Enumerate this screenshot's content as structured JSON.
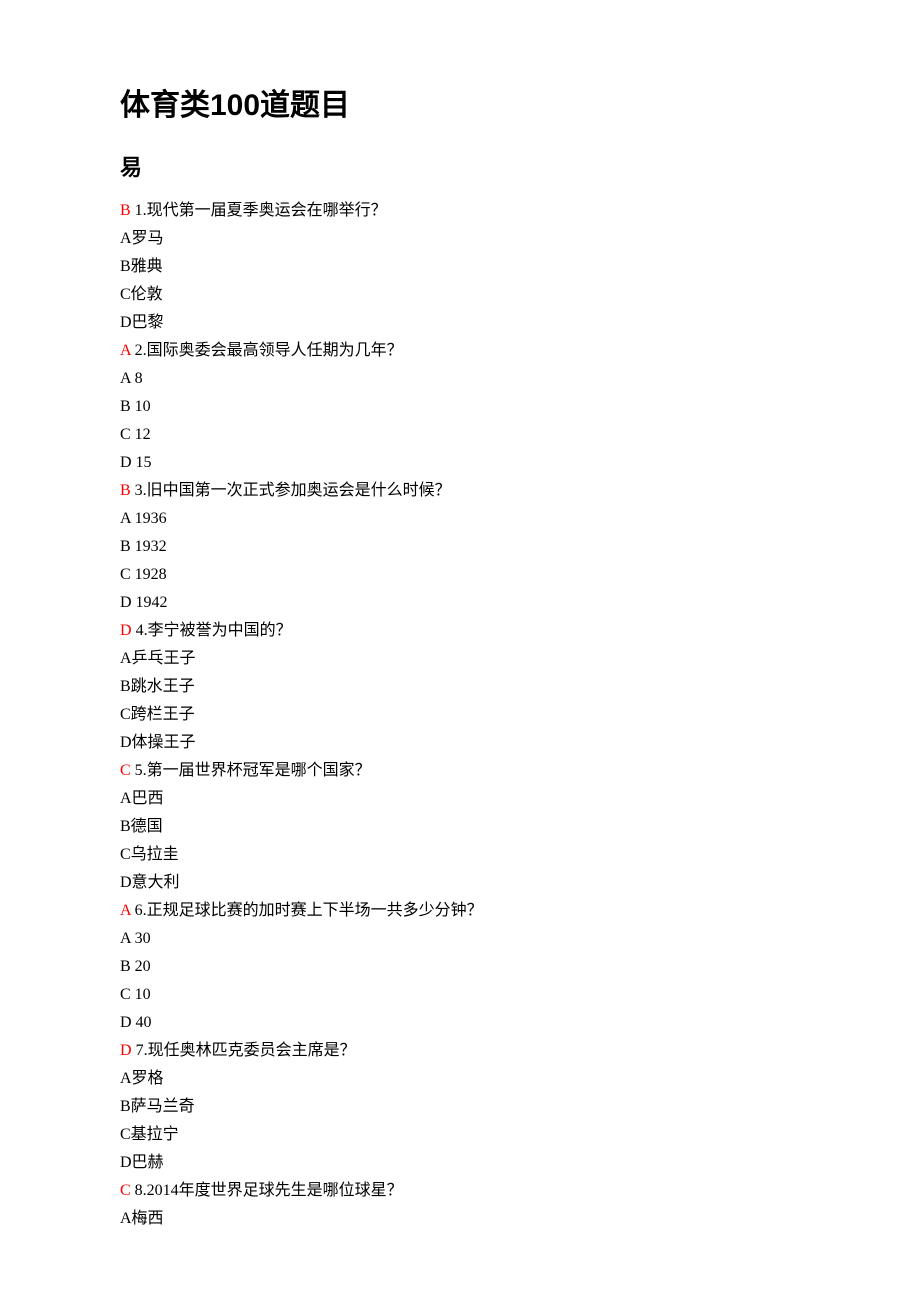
{
  "title": "体育类100道题目",
  "section": "易",
  "text_color": "#000000",
  "answer_color": "#ff0000",
  "background_color": "#ffffff",
  "font_size_body": 16,
  "font_size_title": 30,
  "font_size_section": 22,
  "questions": [
    {
      "answer": "B",
      "number": "1",
      "text": "现代第一届夏季奥运会在哪举行？",
      "options": [
        "A罗马",
        "B雅典",
        "C伦敦",
        "D巴黎"
      ]
    },
    {
      "answer": "A",
      "number": "2",
      "text": "国际奥委会最高领导人任期为几年？",
      "options": [
        "A 8",
        "B 10",
        "C 12",
        "D 15"
      ]
    },
    {
      "answer": "B",
      "number": "3",
      "text": "旧中国第一次正式参加奥运会是什么时候？",
      "options": [
        "A 1936",
        "B 1932",
        "C 1928",
        "D 1942"
      ]
    },
    {
      "answer": "D",
      "number": "4",
      "text": "李宁被誉为中国的？",
      "options": [
        "A乒乓王子",
        "B跳水王子",
        "C跨栏王子",
        "D体操王子"
      ]
    },
    {
      "answer": "C",
      "number": "5",
      "text": "第一届世界杯冠军是哪个国家？",
      "options": [
        "A巴西",
        "B德国",
        "C乌拉圭",
        "D意大利"
      ]
    },
    {
      "answer": "A",
      "number": "6",
      "text": "正规足球比赛的加时赛上下半场一共多少分钟？",
      "options": [
        "A 30",
        "B 20",
        "C 10",
        "D 40"
      ]
    },
    {
      "answer": "D",
      "number": "7",
      "text": "现任奥林匹克委员会主席是？",
      "options": [
        "A罗格",
        "B萨马兰奇",
        "C基拉宁",
        "D巴赫"
      ]
    },
    {
      "answer": "C",
      "number": "8",
      "text": "2014年度世界足球先生是哪位球星？",
      "options": [
        "A梅西"
      ]
    }
  ]
}
